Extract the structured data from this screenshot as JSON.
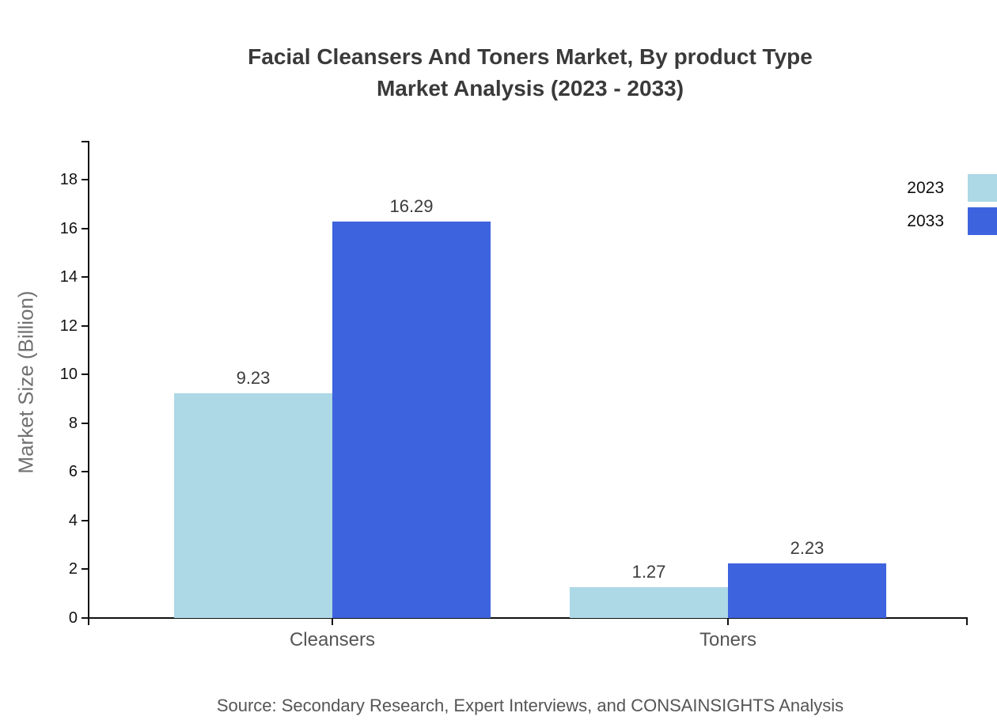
{
  "title": {
    "line1": "Facial Cleansers And Toners Market, By product Type",
    "line2": "Market Analysis (2023 - 2033)"
  },
  "source": "Source: Secondary Research, Expert Interviews, and CONSAINSIGHTS Analysis",
  "legend": [
    {
      "label": "2023",
      "color": "#ADD8E6"
    },
    {
      "label": "2033",
      "color": "#3E63DE"
    }
  ],
  "chart_data": {
    "type": "bar",
    "title": "Facial Cleansers And Toners Market, By product Type Market Analysis (2023 - 2033)",
    "categories": [
      "Cleansers",
      "Toners"
    ],
    "series": [
      {
        "name": "2023",
        "color": "#ADD8E6",
        "values": [
          9.23,
          1.27
        ]
      },
      {
        "name": "2033",
        "color": "#3E63DE",
        "values": [
          16.29,
          2.23
        ]
      }
    ],
    "xlabel": "",
    "ylabel": "Market Size (Billion)",
    "ylim": [
      0,
      18
    ],
    "ytick_step": 2,
    "grid": false,
    "legend_position": "top-right",
    "value_labels": true
  }
}
